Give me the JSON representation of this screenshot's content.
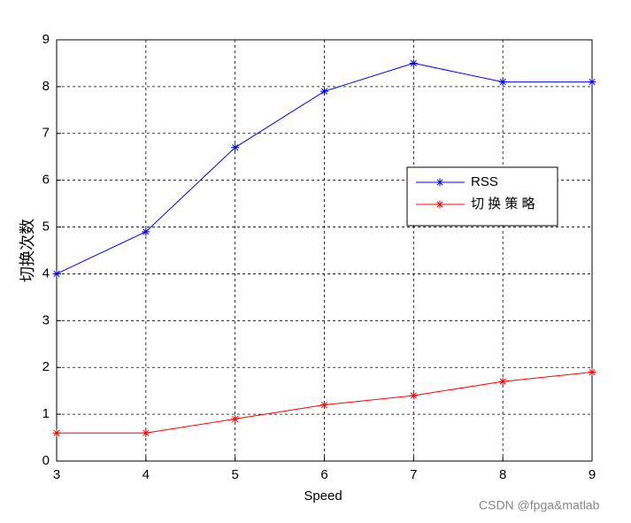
{
  "chart_data": {
    "type": "line",
    "x": [
      3,
      4,
      5,
      6,
      7,
      8,
      9
    ],
    "series": [
      {
        "name": "RSS",
        "color": "#0000ff",
        "values": [
          4.0,
          4.9,
          6.7,
          7.9,
          8.5,
          8.1,
          8.1
        ]
      },
      {
        "name": "切 换 策 略",
        "color": "#ff0000",
        "values": [
          0.6,
          0.6,
          0.9,
          1.2,
          1.4,
          1.7,
          1.9
        ]
      }
    ],
    "xlabel": "Speed",
    "ylabel": "切换次数",
    "xlim": [
      3,
      9
    ],
    "xticks": [
      3,
      4,
      5,
      6,
      7,
      8,
      9
    ],
    "ylim": [
      0,
      9
    ],
    "yticks": [
      0,
      1,
      2,
      3,
      4,
      5,
      6,
      7,
      8,
      9
    ],
    "grid": true,
    "legend": "right",
    "watermark": "CSDN @fpga&matlab"
  }
}
